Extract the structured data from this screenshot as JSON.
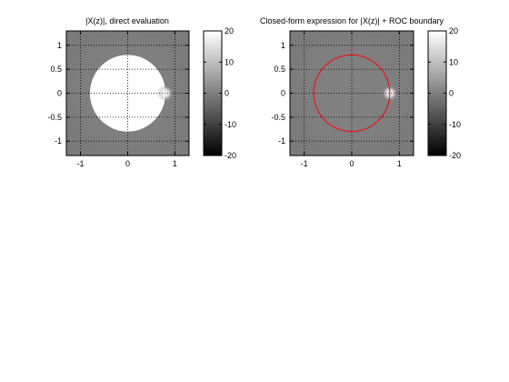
{
  "figure": {
    "background": "#ffffff"
  },
  "chart_data": [
    {
      "type": "heatmap",
      "title": "|X(z)|, direct evaluation",
      "xlim": [
        -1.3,
        1.3
      ],
      "ylim": [
        -1.3,
        1.3
      ],
      "xticks": [
        -1,
        0,
        1
      ],
      "yticks": [
        -1,
        -0.5,
        0,
        0.5,
        1
      ],
      "xtick_labels": [
        "-1",
        "0",
        "1"
      ],
      "ytick_labels": [
        "-1",
        "-0.5",
        "0",
        "0.5",
        "1"
      ],
      "grid": true,
      "grid_style": "dotted",
      "background_level_dB": 0,
      "regions": [
        {
          "shape": "disk",
          "center": [
            0,
            0
          ],
          "radius": 0.8,
          "level_dB": 20,
          "fill": "#ffffff"
        }
      ],
      "peak": {
        "at": [
          0.8,
          0
        ],
        "level_dB": 20
      },
      "colorbar": {
        "clim": [
          -20,
          20
        ],
        "ticks": [
          -20,
          -10,
          0,
          10,
          20
        ],
        "tick_labels": [
          "-20",
          "-10",
          "0",
          "10",
          "20"
        ],
        "colormap": "gray"
      }
    },
    {
      "type": "heatmap",
      "title": "Closed-form expression for |X(z)| + ROC boundary",
      "xlim": [
        -1.3,
        1.3
      ],
      "ylim": [
        -1.3,
        1.3
      ],
      "xticks": [
        -1,
        0,
        1
      ],
      "yticks": [
        -1,
        -0.5,
        0,
        0.5,
        1
      ],
      "xtick_labels": [
        "-1",
        "0",
        "1"
      ],
      "ytick_labels": [
        "-1",
        "-0.5",
        "0",
        "0.5",
        "1"
      ],
      "grid": true,
      "grid_style": "dotted",
      "background_level_dB": 0,
      "roc_boundary": {
        "shape": "circle",
        "center": [
          0,
          0
        ],
        "radius": 0.8,
        "color": "#ff0000"
      },
      "peak": {
        "at": [
          0.8,
          0
        ],
        "level_dB": 20
      },
      "colorbar": {
        "clim": [
          -20,
          20
        ],
        "ticks": [
          -20,
          -10,
          0,
          10,
          20
        ],
        "tick_labels": [
          "-20",
          "-10",
          "0",
          "10",
          "20"
        ],
        "colormap": "gray"
      }
    }
  ]
}
